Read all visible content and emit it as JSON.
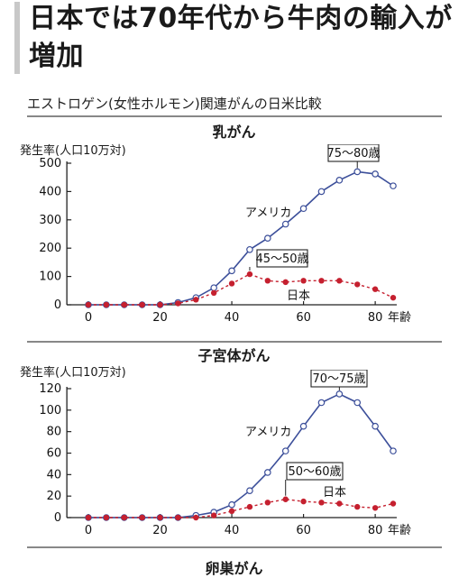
{
  "headline": "日本では70年代から牛肉の輸入が増加",
  "subhead": "エストロゲン(女性ホルモン)関連がんの日米比較",
  "colors": {
    "usa": "#3c4f9a",
    "japan": "#c5202f",
    "axis": "#222222",
    "text": "#111111"
  },
  "chart_data": [
    {
      "type": "line",
      "title": "乳がん",
      "ylabel": "発生率(人口10万対)",
      "xlabel": "年齢",
      "ylim": [
        0,
        500
      ],
      "xlim": [
        0,
        85
      ],
      "yticks": [
        0,
        100,
        200,
        300,
        400,
        500
      ],
      "xticks": [
        0,
        20,
        40,
        60,
        80
      ],
      "series": [
        {
          "name": "アメリカ",
          "color": "#3c4f9a",
          "marker": "open-circle",
          "x": [
            0,
            5,
            10,
            15,
            20,
            25,
            30,
            35,
            40,
            45,
            50,
            55,
            60,
            65,
            70,
            75,
            80,
            85
          ],
          "y": [
            0,
            0,
            0,
            0,
            0,
            8,
            25,
            60,
            120,
            195,
            235,
            285,
            340,
            400,
            440,
            470,
            462,
            420
          ]
        },
        {
          "name": "日本",
          "color": "#c5202f",
          "marker": "filled-circle",
          "x": [
            0,
            5,
            10,
            15,
            20,
            25,
            30,
            35,
            40,
            45,
            50,
            55,
            60,
            65,
            70,
            75,
            80,
            85
          ],
          "y": [
            0,
            0,
            0,
            0,
            0,
            5,
            18,
            42,
            75,
            108,
            85,
            80,
            85,
            85,
            85,
            72,
            55,
            25
          ]
        }
      ],
      "annotations": [
        {
          "text": "75〜80歳",
          "boxed": true,
          "x": 75,
          "y": 470
        },
        {
          "text": "45〜50歳",
          "boxed": true,
          "x": 45,
          "y": 108
        }
      ]
    },
    {
      "type": "line",
      "title": "子宮体がん",
      "ylabel": "発生率(人口10万対)",
      "xlabel": "年齢",
      "ylim": [
        0,
        120
      ],
      "xlim": [
        0,
        85
      ],
      "yticks": [
        0,
        20,
        40,
        60,
        80,
        100,
        120
      ],
      "xticks": [
        0,
        20,
        40,
        60,
        80
      ],
      "series": [
        {
          "name": "アメリカ",
          "color": "#3c4f9a",
          "marker": "open-circle",
          "x": [
            0,
            5,
            10,
            15,
            20,
            25,
            30,
            35,
            40,
            45,
            50,
            55,
            60,
            65,
            70,
            75,
            80,
            85
          ],
          "y": [
            0,
            0,
            0,
            0,
            0,
            0,
            2,
            5,
            12,
            25,
            42,
            62,
            85,
            107,
            115,
            107,
            85,
            62
          ]
        },
        {
          "name": "日本",
          "color": "#c5202f",
          "marker": "filled-circle",
          "x": [
            0,
            5,
            10,
            15,
            20,
            25,
            30,
            35,
            40,
            45,
            50,
            55,
            60,
            65,
            70,
            75,
            80,
            85
          ],
          "y": [
            0,
            0,
            0,
            0,
            0,
            0,
            0,
            2,
            6,
            10,
            14,
            17,
            15,
            14,
            13,
            10,
            9,
            13
          ]
        }
      ],
      "annotations": [
        {
          "text": "70〜75歳",
          "boxed": true,
          "x": 70,
          "y": 115
        },
        {
          "text": "50〜60歳",
          "boxed": true,
          "x": 55,
          "y": 17
        }
      ]
    },
    {
      "type": "line",
      "title": "卵巣がん"
    }
  ]
}
